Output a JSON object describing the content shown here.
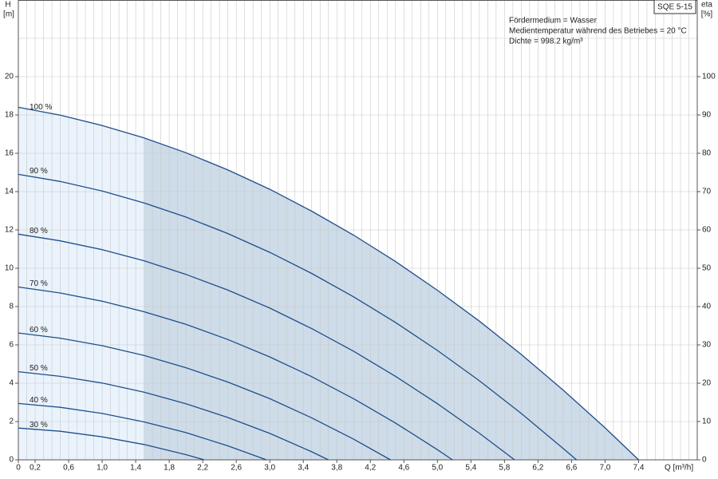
{
  "chart_data": {
    "type": "line",
    "title": "SQE 5-15",
    "annotations": [
      "Fördermedium = Wasser",
      "Medientemperatur während des Betriebes = 20 °C",
      "Dichte = 998.2 kg/m³"
    ],
    "y_label": "H",
    "y_unit": "[m]",
    "y2_label": "eta",
    "y2_unit": "[%]",
    "x_label": "Q [m³/h]",
    "xlim": [
      0,
      8.1
    ],
    "ylim": [
      0,
      24
    ],
    "y2lim": [
      0,
      120
    ],
    "xticks": [
      0,
      {
        "value": 0.2,
        "label": "0,2"
      },
      {
        "value": 0.6,
        "label": "0,6"
      },
      {
        "value": 1.0,
        "label": "1,0"
      },
      {
        "value": 1.4,
        "label": "1,4"
      },
      {
        "value": 1.8,
        "label": "1,8"
      },
      {
        "value": 2.2,
        "label": "2,2"
      },
      {
        "value": 2.6,
        "label": "2,6"
      },
      {
        "value": 3.0,
        "label": "3,0"
      },
      {
        "value": 3.4,
        "label": "3,4"
      },
      {
        "value": 3.8,
        "label": "3,8"
      },
      {
        "value": 4.2,
        "label": "4,2"
      },
      {
        "value": 4.6,
        "label": "4,6"
      },
      {
        "value": 5.0,
        "label": "5,0"
      },
      {
        "value": 5.4,
        "label": "5,4"
      },
      {
        "value": 5.8,
        "label": "5,8"
      },
      {
        "value": 6.2,
        "label": "6,2"
      },
      {
        "value": 6.6,
        "label": "6,6"
      },
      {
        "value": 7.0,
        "label": "7,0"
      },
      {
        "value": 7.4,
        "label": "7,4"
      }
    ],
    "yticks": [
      0,
      2,
      4,
      6,
      8,
      10,
      12,
      14,
      16,
      18,
      20
    ],
    "y2ticks": [
      0,
      10,
      20,
      30,
      40,
      50,
      60,
      70,
      80,
      90,
      100
    ],
    "x_grid_step": 0.1,
    "y_grid_step": 2,
    "grid": true,
    "shade_from": 1.5,
    "shade_colors": [
      "#eaf3fb",
      "#cddce8"
    ],
    "series": [
      {
        "name": "100 %",
        "color": "#1f4e8c",
        "x": [
          0,
          0.5,
          1,
          1.5,
          2,
          2.5,
          3,
          3.5,
          4,
          4.5,
          5,
          5.5,
          6,
          6.5,
          7,
          7.4
        ],
        "values": [
          18.4,
          17.99,
          17.45,
          16.8,
          16.03,
          15.13,
          14.12,
          12.98,
          11.73,
          10.35,
          8.85,
          7.24,
          5.5,
          3.64,
          1.67,
          0
        ]
      },
      {
        "name": "90 %",
        "color": "#1f4e8c",
        "x": [
          0,
          0.5,
          1,
          1.5,
          2,
          2.5,
          3,
          3.5,
          4,
          4.5,
          5,
          5.5,
          6,
          6.5,
          6.66
        ],
        "values": [
          14.9,
          14.53,
          14.03,
          13.41,
          12.67,
          11.81,
          10.83,
          9.73,
          8.51,
          7.17,
          5.71,
          4.13,
          2.42,
          0.59,
          0
        ]
      },
      {
        "name": "80 %",
        "color": "#1f4e8c",
        "x": [
          0,
          0.5,
          1,
          1.5,
          2,
          2.5,
          3,
          3.5,
          4,
          4.5,
          5,
          5.5,
          5.92
        ],
        "values": [
          11.78,
          11.43,
          10.97,
          10.39,
          9.68,
          8.86,
          7.92,
          6.85,
          5.67,
          4.36,
          2.93,
          1.39,
          0
        ]
      },
      {
        "name": "70 %",
        "color": "#1f4e8c",
        "x": [
          0,
          0.5,
          1,
          1.5,
          2,
          2.5,
          3,
          3.5,
          4,
          4.5,
          5,
          5.18
        ],
        "values": [
          9.02,
          8.71,
          8.28,
          7.73,
          7.07,
          6.28,
          5.37,
          4.34,
          3.19,
          1.92,
          0.53,
          0
        ]
      },
      {
        "name": "60 %",
        "color": "#1f4e8c",
        "x": [
          0,
          0.5,
          1,
          1.5,
          2,
          2.5,
          3,
          3.5,
          4,
          4.44
        ],
        "values": [
          6.62,
          6.35,
          5.96,
          5.45,
          4.81,
          4.06,
          3.19,
          2.19,
          1.08,
          0
        ]
      },
      {
        "name": "50 %",
        "color": "#1f4e8c",
        "x": [
          0,
          0.5,
          1,
          1.5,
          2,
          2.5,
          3,
          3.5,
          3.7
        ],
        "values": [
          4.6,
          4.36,
          4.01,
          3.53,
          2.93,
          2.21,
          1.38,
          0.42,
          0
        ]
      },
      {
        "name": "40 %",
        "color": "#1f4e8c",
        "x": [
          0,
          0.5,
          1,
          1.5,
          2,
          2.5,
          2.96
        ],
        "values": [
          2.94,
          2.74,
          2.42,
          1.98,
          1.42,
          0.73,
          0
        ]
      },
      {
        "name": "30 %",
        "color": "#1f4e8c",
        "x": [
          0,
          0.5,
          1,
          1.5,
          2,
          2.22
        ],
        "values": [
          1.66,
          1.49,
          1.2,
          0.8,
          0.27,
          0
        ]
      }
    ]
  }
}
